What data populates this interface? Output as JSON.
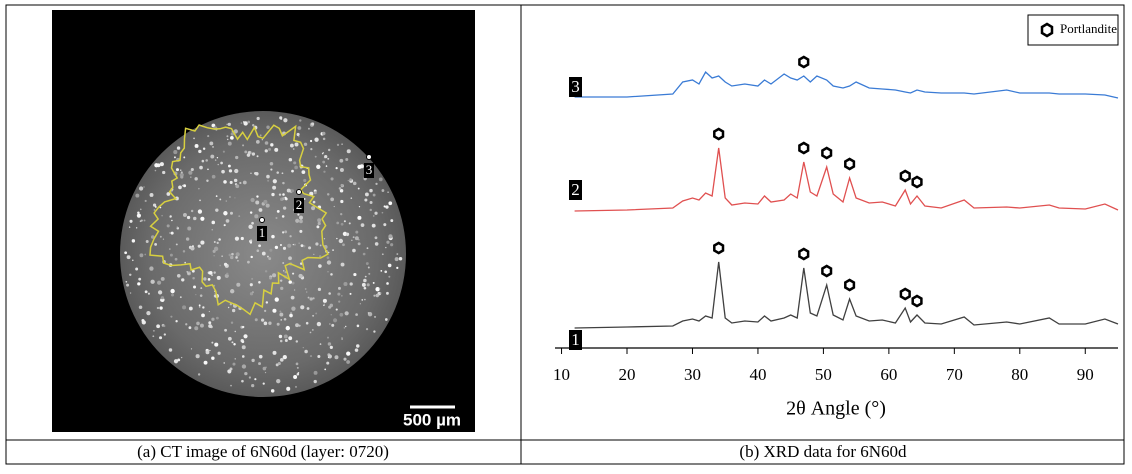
{
  "figure": {
    "panels": [
      {
        "caption": "(a) CT image of 6N60d (layer: 0720)",
        "points": [
          "1",
          "2",
          "3"
        ],
        "scale_bar": "500 µm"
      },
      {
        "caption": "(b) XRD data for 6N60d"
      }
    ]
  },
  "chart_data": {
    "type": "line",
    "xlabel": "2θ Angle (°)",
    "marker_legend": "Portlandite",
    "xlim": [
      9,
      95
    ],
    "xticks": [
      10,
      20,
      30,
      40,
      50,
      60,
      70,
      80,
      90
    ],
    "ylim": [
      0,
      340
    ],
    "x": [
      12,
      20,
      27,
      28.5,
      30,
      31,
      32,
      33,
      34,
      35,
      36,
      38,
      40,
      41,
      42,
      44,
      45,
      46,
      47,
      48,
      49,
      50.5,
      51.5,
      53,
      54,
      55,
      57,
      59,
      61,
      62.5,
      63.3,
      64.3,
      65.5,
      68,
      71.5,
      73,
      78,
      80,
      84.5,
      86,
      90,
      93,
      95
    ],
    "series": [
      {
        "name": "1",
        "color": "#404040",
        "markers": [
          34,
          47,
          50.5,
          54,
          62.5,
          64.3
        ],
        "values": [
          20,
          21,
          22,
          27,
          29,
          27,
          32,
          30,
          86,
          30,
          25,
          27,
          26,
          32,
          27,
          30,
          33,
          30,
          80,
          35,
          32,
          63,
          33,
          28,
          49,
          32,
          27,
          28,
          25,
          40,
          26,
          33,
          25,
          24,
          31,
          23,
          26,
          24,
          30,
          24,
          24,
          29,
          24
        ]
      },
      {
        "name": "2",
        "color": "#e05050",
        "markers": [
          34,
          47,
          50.5,
          54,
          62.5,
          64.3
        ],
        "values": [
          137,
          138,
          140,
          147,
          150,
          148,
          155,
          152,
          200,
          150,
          143,
          145,
          144,
          152,
          146,
          148,
          154,
          150,
          186,
          156,
          152,
          181,
          154,
          146,
          170,
          150,
          145,
          146,
          142,
          158,
          144,
          152,
          142,
          140,
          148,
          140,
          141,
          140,
          143,
          140,
          139,
          144,
          138
        ]
      },
      {
        "name": "3",
        "color": "#3a7bd5",
        "markers": [
          47
        ],
        "values": [
          251,
          251,
          254,
          266,
          268,
          264,
          276,
          270,
          272,
          266,
          262,
          264,
          262,
          268,
          264,
          274,
          270,
          268,
          272,
          266,
          272,
          268,
          262,
          260,
          262,
          266,
          260,
          259,
          258,
          256,
          255,
          258,
          256,
          255,
          255,
          254,
          258,
          255,
          255,
          254,
          254,
          253,
          250
        ]
      }
    ]
  }
}
